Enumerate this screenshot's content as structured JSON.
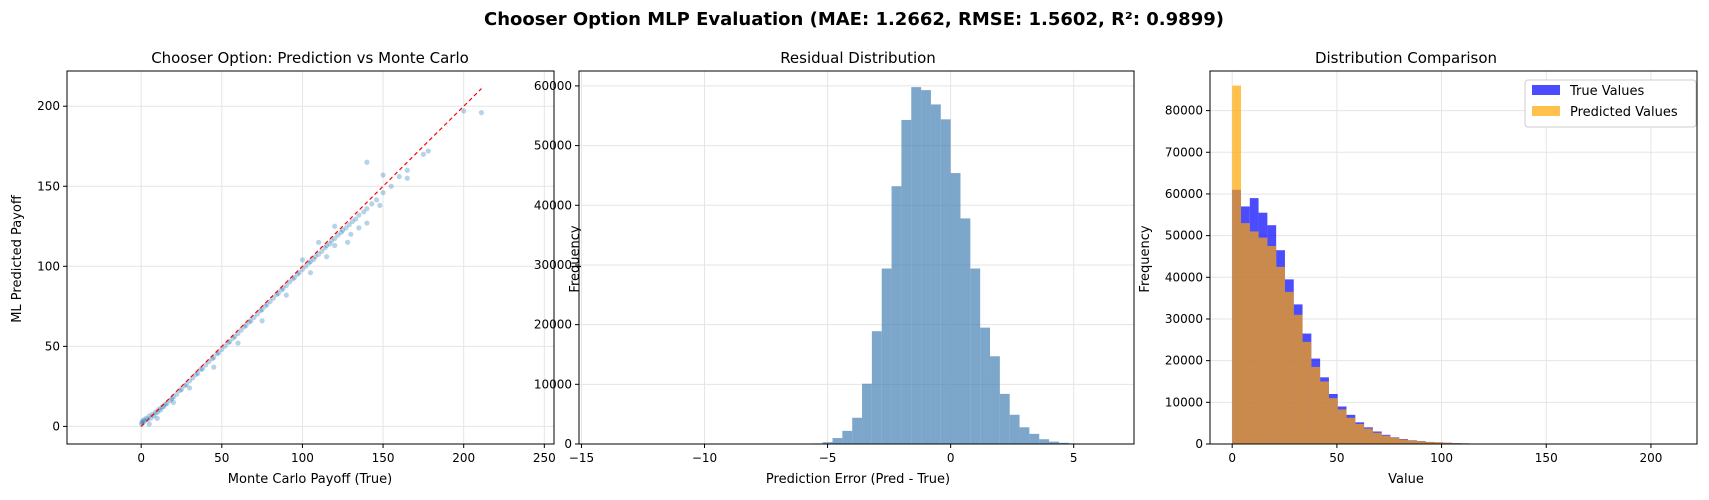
{
  "figure": {
    "suptitle": "Chooser Option MLP Evaluation (MAE: 1.2662, RMSE: 1.5602, R²: 0.9899)"
  },
  "chart_data": [
    {
      "type": "scatter",
      "title": "Chooser Option: Prediction vs Monte Carlo",
      "xlabel": "Monte Carlo Payoff (True)",
      "ylabel": "ML Predicted Payoff",
      "xlim": [
        -46,
        256
      ],
      "ylim": [
        -11,
        222
      ],
      "xticks": [
        0,
        50,
        100,
        150,
        200,
        250
      ],
      "yticks": [
        0,
        50,
        100,
        150,
        200
      ],
      "grid": true,
      "point_color": "#1f77b4",
      "reference_line": {
        "x": [
          0,
          211
        ],
        "y": [
          0,
          211
        ],
        "color": "#ff0000",
        "style": "dashed"
      },
      "points": [
        [
          0.2,
          1.5
        ],
        [
          0.5,
          3.0
        ],
        [
          1,
          2.2
        ],
        [
          1.5,
          4
        ],
        [
          2,
          3.3
        ],
        [
          3,
          5
        ],
        [
          4,
          4.3
        ],
        [
          5,
          6.5
        ],
        [
          6,
          5.2
        ],
        [
          7,
          7.6
        ],
        [
          8,
          6.6
        ],
        [
          9,
          9
        ],
        [
          10,
          8.7
        ],
        [
          11,
          10.8
        ],
        [
          12,
          10.2
        ],
        [
          13,
          12.2
        ],
        [
          14,
          12.4
        ],
        [
          15,
          13.8
        ],
        [
          16,
          14.4
        ],
        [
          18,
          16.2
        ],
        [
          19,
          17.4
        ],
        [
          20,
          18.4
        ],
        [
          22,
          20.1
        ],
        [
          24,
          22.4
        ],
        [
          25,
          23.1
        ],
        [
          27,
          25.4
        ],
        [
          28,
          26.2
        ],
        [
          30,
          28.4
        ],
        [
          32,
          30.3
        ],
        [
          34,
          32.5
        ],
        [
          35,
          33.1
        ],
        [
          37,
          35.6
        ],
        [
          38,
          36.0
        ],
        [
          40,
          38.4
        ],
        [
          42,
          40.5
        ],
        [
          44,
          42.3
        ],
        [
          45,
          43.0
        ],
        [
          47,
          45.4
        ],
        [
          48,
          46.0
        ],
        [
          50,
          48.1
        ],
        [
          52,
          50.2
        ],
        [
          54,
          52.3
        ],
        [
          55,
          53.0
        ],
        [
          57,
          55.1
        ],
        [
          58,
          56.2
        ],
        [
          60,
          58.0
        ],
        [
          62,
          60.1
        ],
        [
          64,
          62.3
        ],
        [
          65,
          63.1
        ],
        [
          67,
          65.2
        ],
        [
          68,
          66.0
        ],
        [
          70,
          68.1
        ],
        [
          72,
          70.2
        ],
        [
          74,
          72.3
        ],
        [
          75,
          73.0
        ],
        [
          77,
          75.1
        ],
        [
          78,
          76.3
        ],
        [
          80,
          78.0
        ],
        [
          82,
          80.1
        ],
        [
          84,
          82.4
        ],
        [
          85,
          83.1
        ],
        [
          87,
          85.2
        ],
        [
          88,
          86.3
        ],
        [
          90,
          88.0
        ],
        [
          92,
          90.2
        ],
        [
          94,
          92.1
        ],
        [
          95,
          93.0
        ],
        [
          97,
          95.0
        ],
        [
          98,
          96.1
        ],
        [
          100,
          98.1
        ],
        [
          102,
          100.0
        ],
        [
          104,
          102.1
        ],
        [
          105,
          103.0
        ],
        [
          107,
          104.4
        ],
        [
          108,
          106.0
        ],
        [
          110,
          107.5
        ],
        [
          112,
          109.4
        ],
        [
          114,
          111.6
        ],
        [
          115,
          113.0
        ],
        [
          117,
          114.0
        ],
        [
          118,
          116.0
        ],
        [
          120,
          117.4
        ],
        [
          122,
          119.5
        ],
        [
          124,
          121.2
        ],
        [
          125,
          122.5
        ],
        [
          127,
          124.0
        ],
        [
          129,
          126.0
        ],
        [
          131,
          128.0
        ],
        [
          133,
          129.5
        ],
        [
          135,
          132.0
        ],
        [
          138,
          134.0
        ],
        [
          140,
          136.0
        ],
        [
          143,
          139.0
        ],
        [
          146,
          141.5
        ],
        [
          150,
          146.0
        ],
        [
          155,
          150.0
        ],
        [
          160,
          156.0
        ],
        [
          165,
          160.0
        ],
        [
          175,
          170.0
        ],
        [
          178,
          172.0
        ],
        [
          45,
          37
        ],
        [
          60,
          52
        ],
        [
          75,
          66
        ],
        [
          90,
          82
        ],
        [
          105,
          96
        ],
        [
          115,
          106
        ],
        [
          120,
          113
        ],
        [
          130,
          120
        ],
        [
          140,
          127
        ],
        [
          148,
          138
        ],
        [
          128,
          115
        ],
        [
          135,
          124
        ],
        [
          30,
          24
        ],
        [
          20,
          15
        ],
        [
          10,
          5
        ],
        [
          5,
          1.5
        ],
        [
          120,
          125
        ],
        [
          110,
          115
        ],
        [
          100,
          104
        ],
        [
          140,
          165
        ],
        [
          150,
          157
        ],
        [
          165,
          155
        ],
        [
          200,
          197
        ],
        [
          211,
          196
        ]
      ]
    },
    {
      "type": "bar",
      "title": "Residual Distribution",
      "xlabel": "Prediction Error (Pred - True)",
      "ylabel": "Frequency",
      "xlim": [
        -15.1,
        7.45
      ],
      "ylim": [
        0,
        62500
      ],
      "xticks": [
        -15,
        -10,
        -5,
        0,
        5
      ],
      "yticks": [
        0,
        10000,
        20000,
        30000,
        40000,
        50000,
        60000
      ],
      "grid": true,
      "bar_color": "#4682b4",
      "bin_edges": [
        -5.6,
        -5.2,
        -4.8,
        -4.4,
        -4.0,
        -3.6,
        -3.2,
        -2.8,
        -2.4,
        -2.0,
        -1.6,
        -1.2,
        -0.8,
        -0.4,
        0.0,
        0.4,
        0.8,
        1.2,
        1.6,
        2.0,
        2.4,
        2.8,
        3.2,
        3.6,
        4.0,
        4.4,
        4.8,
        5.2,
        5.6
      ],
      "values": [
        100,
        300,
        1000,
        2200,
        4400,
        10100,
        18900,
        29400,
        43200,
        54300,
        59800,
        59300,
        56900,
        54400,
        45400,
        37800,
        29400,
        19500,
        14700,
        8400,
        4900,
        2800,
        1700,
        800,
        400,
        200,
        100,
        50
      ]
    },
    {
      "type": "bar",
      "title": "Distribution Comparison",
      "xlabel": "Value",
      "ylabel": "Frequency",
      "xlim": [
        -10.6,
        222
      ],
      "ylim": [
        0,
        89500
      ],
      "xticks": [
        0,
        50,
        100,
        150,
        200
      ],
      "yticks": [
        0,
        10000,
        20000,
        30000,
        40000,
        50000,
        60000,
        70000,
        80000
      ],
      "grid": true,
      "legend_position": "top-right",
      "bin_edges": [
        0.0,
        4.2,
        8.4,
        12.6,
        16.8,
        21.0,
        25.2,
        29.4,
        33.6,
        37.8,
        42.0,
        46.2,
        50.4,
        54.6,
        58.8,
        63.0,
        67.2,
        71.4,
        75.6,
        79.8,
        84.0,
        88.2,
        92.4,
        96.6,
        100.8,
        105.0,
        109.2,
        113.4,
        117.6
      ],
      "series": [
        {
          "name": "True Values",
          "color": "#0000ff",
          "values": [
            61000,
            57000,
            59000,
            55500,
            52500,
            46500,
            39500,
            33500,
            26500,
            20500,
            16000,
            12000,
            9000,
            7000,
            5200,
            4000,
            3000,
            2200,
            1600,
            1200,
            900,
            700,
            500,
            400,
            300,
            200,
            150,
            100
          ]
        },
        {
          "name": "Predicted Values",
          "color": "#ffa500",
          "values": [
            86000,
            53000,
            51000,
            49500,
            47500,
            42500,
            36500,
            31000,
            24500,
            18500,
            15000,
            11000,
            8300,
            6300,
            4800,
            3700,
            2700,
            2000,
            1500,
            1100,
            850,
            650,
            480,
            380,
            280,
            190,
            140,
            90
          ]
        }
      ]
    }
  ]
}
